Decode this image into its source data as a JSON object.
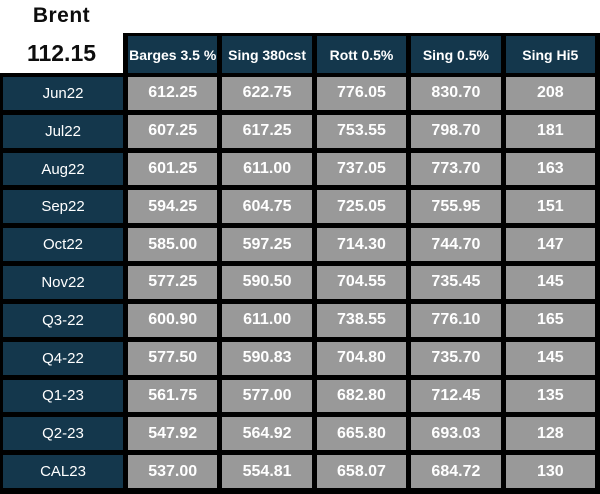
{
  "brent": {
    "label": "Brent",
    "price": "112.15"
  },
  "table": {
    "columns": [
      "Barges 3.5 %",
      "Sing 380cst",
      "Rott 0.5%",
      "Sing 0.5%",
      "Sing Hi5"
    ],
    "rows": [
      {
        "label": "Jun22",
        "values": [
          "612.25",
          "622.75",
          "776.05",
          "830.70",
          "208"
        ]
      },
      {
        "label": "Jul22",
        "values": [
          "607.25",
          "617.25",
          "753.55",
          "798.70",
          "181"
        ]
      },
      {
        "label": "Aug22",
        "values": [
          "601.25",
          "611.00",
          "737.05",
          "773.70",
          "163"
        ]
      },
      {
        "label": "Sep22",
        "values": [
          "594.25",
          "604.75",
          "725.05",
          "755.95",
          "151"
        ]
      },
      {
        "label": "Oct22",
        "values": [
          "585.00",
          "597.25",
          "714.30",
          "744.70",
          "147"
        ]
      },
      {
        "label": "Nov22",
        "values": [
          "577.25",
          "590.50",
          "704.55",
          "735.45",
          "145"
        ]
      },
      {
        "label": "Q3-22",
        "values": [
          "600.90",
          "611.00",
          "738.55",
          "776.10",
          "165"
        ]
      },
      {
        "label": "Q4-22",
        "values": [
          "577.50",
          "590.83",
          "704.80",
          "735.70",
          "145"
        ]
      },
      {
        "label": "Q1-23",
        "values": [
          "561.75",
          "577.00",
          "682.80",
          "712.45",
          "135"
        ]
      },
      {
        "label": "Q2-23",
        "values": [
          "547.92",
          "564.92",
          "665.80",
          "693.03",
          "128"
        ]
      },
      {
        "label": "CAL23",
        "values": [
          "537.00",
          "554.81",
          "658.07",
          "684.72",
          "130"
        ]
      }
    ]
  },
  "colors": {
    "header_navy": "#14374c",
    "cell_gray": "#999999",
    "grid_border": "#000000",
    "cell_text": "#ffffff",
    "brent_text": "#0d0d0d",
    "background": "#ffffff"
  }
}
